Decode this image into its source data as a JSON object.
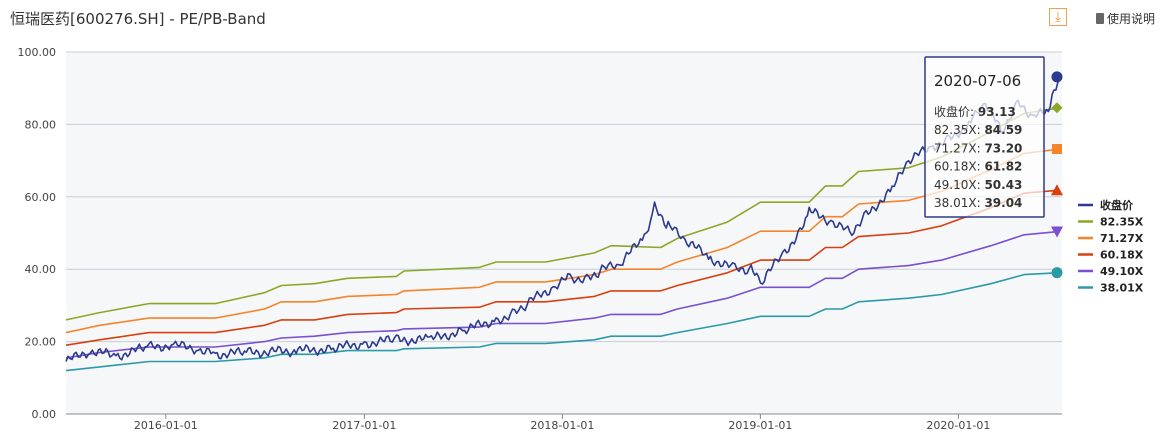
{
  "header": {
    "title": "恒瑞医药[600276.SH] - PE/PB-Band",
    "download_icon": "download-icon",
    "help_label": "使用说明",
    "help_icon": "book-icon"
  },
  "chart_data": {
    "type": "line",
    "title": "恒瑞医药[600276.SH] - PE/PB-Band",
    "ylim": [
      0,
      100
    ],
    "y_ticks": [
      "0.00",
      "20.00",
      "40.00",
      "60.00",
      "80.00",
      "100.00"
    ],
    "x_ticks": [
      "2016-01-01",
      "2017-01-01",
      "2018-01-01",
      "2019-01-01",
      "2020-01-01"
    ],
    "xlim": [
      "2015-07-01",
      "2020-07-10"
    ],
    "grid": true,
    "legend_placement": "right",
    "series": [
      {
        "name": "收盘价",
        "color": "#2b3a8f",
        "marker": "circle",
        "points": [
          [
            "2015-07-01",
            14.5
          ],
          [
            "2015-08-15",
            17.5
          ],
          [
            "2015-10-01",
            16
          ],
          [
            "2015-12-01",
            18.5
          ],
          [
            "2016-01-15",
            19
          ],
          [
            "2016-03-01",
            18
          ],
          [
            "2016-04-01",
            16.5
          ],
          [
            "2016-06-01",
            17
          ],
          [
            "2016-09-01",
            17.5
          ],
          [
            "2016-11-01",
            18
          ],
          [
            "2017-01-01",
            19.5
          ],
          [
            "2017-03-01",
            20.5
          ],
          [
            "2017-05-01",
            20.5
          ],
          [
            "2017-07-01",
            23
          ],
          [
            "2017-09-01",
            26
          ],
          [
            "2017-10-01",
            27.5
          ],
          [
            "2017-11-01",
            31
          ],
          [
            "2017-12-15",
            35
          ],
          [
            "2018-01-15",
            38
          ],
          [
            "2018-02-15",
            37
          ],
          [
            "2018-03-15",
            40
          ],
          [
            "2018-04-15",
            41
          ],
          [
            "2018-06-01",
            49
          ],
          [
            "2018-06-20",
            57
          ],
          [
            "2018-07-15",
            52
          ],
          [
            "2018-08-15",
            48
          ],
          [
            "2018-10-01",
            43
          ],
          [
            "2018-11-15",
            40
          ],
          [
            "2018-12-15",
            40
          ],
          [
            "2019-01-01",
            36
          ],
          [
            "2019-02-15",
            45
          ],
          [
            "2019-03-15",
            50
          ],
          [
            "2019-04-01",
            56
          ],
          [
            "2019-05-15",
            53
          ],
          [
            "2019-06-15",
            50
          ],
          [
            "2019-07-15",
            55
          ],
          [
            "2019-09-01",
            62
          ],
          [
            "2019-10-01",
            70
          ],
          [
            "2019-11-15",
            74
          ],
          [
            "2019-12-15",
            76
          ],
          [
            "2020-01-20",
            80
          ],
          [
            "2020-02-20",
            86
          ],
          [
            "2020-03-20",
            78
          ],
          [
            "2020-04-20",
            86
          ],
          [
            "2020-05-20",
            82
          ],
          [
            "2020-06-15",
            84
          ],
          [
            "2020-06-25",
            90
          ],
          [
            "2020-07-06",
            93.13
          ]
        ]
      },
      {
        "name": "82.35X",
        "color": "#8aa826",
        "marker": "diamond",
        "points": [
          [
            "2015-07-01",
            26
          ],
          [
            "2015-09-01",
            28
          ],
          [
            "2015-12-01",
            30.5
          ],
          [
            "2016-04-01",
            30.5
          ],
          [
            "2016-07-01",
            33.5
          ],
          [
            "2016-08-01",
            35.5
          ],
          [
            "2016-10-01",
            36
          ],
          [
            "2016-12-01",
            37.5
          ],
          [
            "2017-03-01",
            38
          ],
          [
            "2017-03-15",
            39.5
          ],
          [
            "2017-08-01",
            40.5
          ],
          [
            "2017-09-01",
            42
          ],
          [
            "2017-12-01",
            42
          ],
          [
            "2018-03-01",
            44.5
          ],
          [
            "2018-04-01",
            46.5
          ],
          [
            "2018-07-01",
            46
          ],
          [
            "2018-08-01",
            48.5
          ],
          [
            "2018-11-01",
            53
          ],
          [
            "2019-01-01",
            58.5
          ],
          [
            "2019-04-01",
            58.5
          ],
          [
            "2019-05-01",
            63
          ],
          [
            "2019-06-01",
            63
          ],
          [
            "2019-07-01",
            67
          ],
          [
            "2019-10-01",
            68
          ],
          [
            "2019-12-01",
            71
          ],
          [
            "2020-03-01",
            78
          ],
          [
            "2020-05-01",
            83
          ],
          [
            "2020-07-06",
            84.59
          ]
        ]
      },
      {
        "name": "71.27X",
        "color": "#f5842a",
        "marker": "square",
        "points": [
          [
            "2015-07-01",
            22.5
          ],
          [
            "2015-09-01",
            24.5
          ],
          [
            "2015-12-01",
            26.5
          ],
          [
            "2016-04-01",
            26.5
          ],
          [
            "2016-07-01",
            29
          ],
          [
            "2016-08-01",
            31
          ],
          [
            "2016-10-01",
            31
          ],
          [
            "2016-12-01",
            32.5
          ],
          [
            "2017-03-01",
            33
          ],
          [
            "2017-03-15",
            34
          ],
          [
            "2017-08-01",
            35
          ],
          [
            "2017-09-01",
            36.5
          ],
          [
            "2017-12-01",
            36.5
          ],
          [
            "2018-03-01",
            38.5
          ],
          [
            "2018-04-01",
            40
          ],
          [
            "2018-07-01",
            40
          ],
          [
            "2018-08-01",
            42
          ],
          [
            "2018-11-01",
            46
          ],
          [
            "2019-01-01",
            50.5
          ],
          [
            "2019-04-01",
            50.5
          ],
          [
            "2019-05-01",
            54.5
          ],
          [
            "2019-06-01",
            54.5
          ],
          [
            "2019-07-01",
            58
          ],
          [
            "2019-10-01",
            59
          ],
          [
            "2019-12-01",
            61.5
          ],
          [
            "2020-03-01",
            67.5
          ],
          [
            "2020-05-01",
            72
          ],
          [
            "2020-07-06",
            73.2
          ]
        ]
      },
      {
        "name": "60.18X",
        "color": "#d8400e",
        "marker": "triangle",
        "points": [
          [
            "2015-07-01",
            19
          ],
          [
            "2015-09-01",
            20.5
          ],
          [
            "2015-12-01",
            22.5
          ],
          [
            "2016-04-01",
            22.5
          ],
          [
            "2016-07-01",
            24.5
          ],
          [
            "2016-08-01",
            26
          ],
          [
            "2016-10-01",
            26
          ],
          [
            "2016-12-01",
            27.5
          ],
          [
            "2017-03-01",
            28
          ],
          [
            "2017-03-15",
            29
          ],
          [
            "2017-08-01",
            29.5
          ],
          [
            "2017-09-01",
            31
          ],
          [
            "2017-12-01",
            31
          ],
          [
            "2018-03-01",
            32.5
          ],
          [
            "2018-04-01",
            34
          ],
          [
            "2018-07-01",
            34
          ],
          [
            "2018-08-01",
            35.5
          ],
          [
            "2018-11-01",
            39
          ],
          [
            "2019-01-01",
            42.5
          ],
          [
            "2019-04-01",
            42.5
          ],
          [
            "2019-05-01",
            46
          ],
          [
            "2019-06-01",
            46
          ],
          [
            "2019-07-01",
            49
          ],
          [
            "2019-10-01",
            50
          ],
          [
            "2019-12-01",
            52
          ],
          [
            "2020-03-01",
            57
          ],
          [
            "2020-05-01",
            61
          ],
          [
            "2020-07-06",
            61.82
          ]
        ]
      },
      {
        "name": "49.10X",
        "color": "#7a4fd0",
        "marker": "triangle-down",
        "points": [
          [
            "2015-07-01",
            15.5
          ],
          [
            "2015-09-01",
            17
          ],
          [
            "2015-12-01",
            18.5
          ],
          [
            "2016-04-01",
            18.5
          ],
          [
            "2016-07-01",
            20
          ],
          [
            "2016-08-01",
            21
          ],
          [
            "2016-10-01",
            21.5
          ],
          [
            "2016-12-01",
            22.5
          ],
          [
            "2017-03-01",
            23
          ],
          [
            "2017-03-15",
            23.5
          ],
          [
            "2017-08-01",
            24
          ],
          [
            "2017-09-01",
            25
          ],
          [
            "2017-12-01",
            25
          ],
          [
            "2018-03-01",
            26.5
          ],
          [
            "2018-04-01",
            27.5
          ],
          [
            "2018-07-01",
            27.5
          ],
          [
            "2018-08-01",
            29
          ],
          [
            "2018-11-01",
            32
          ],
          [
            "2019-01-01",
            35
          ],
          [
            "2019-04-01",
            35
          ],
          [
            "2019-05-01",
            37.5
          ],
          [
            "2019-06-01",
            37.5
          ],
          [
            "2019-07-01",
            40
          ],
          [
            "2019-10-01",
            41
          ],
          [
            "2019-12-01",
            42.5
          ],
          [
            "2020-03-01",
            46.5
          ],
          [
            "2020-05-01",
            49.5
          ],
          [
            "2020-07-06",
            50.43
          ]
        ]
      },
      {
        "name": "38.01X",
        "color": "#2a9aa8",
        "marker": "circle",
        "points": [
          [
            "2015-07-01",
            12
          ],
          [
            "2015-09-01",
            13
          ],
          [
            "2015-12-01",
            14.5
          ],
          [
            "2016-04-01",
            14.5
          ],
          [
            "2016-07-01",
            15.5
          ],
          [
            "2016-08-01",
            16.5
          ],
          [
            "2016-10-01",
            16.5
          ],
          [
            "2016-12-01",
            17.5
          ],
          [
            "2017-03-01",
            17.5
          ],
          [
            "2017-03-15",
            18
          ],
          [
            "2017-08-01",
            18.5
          ],
          [
            "2017-09-01",
            19.5
          ],
          [
            "2017-12-01",
            19.5
          ],
          [
            "2018-03-01",
            20.5
          ],
          [
            "2018-04-01",
            21.5
          ],
          [
            "2018-07-01",
            21.5
          ],
          [
            "2018-08-01",
            22.5
          ],
          [
            "2018-11-01",
            25
          ],
          [
            "2019-01-01",
            27
          ],
          [
            "2019-04-01",
            27
          ],
          [
            "2019-05-01",
            29
          ],
          [
            "2019-06-01",
            29
          ],
          [
            "2019-07-01",
            31
          ],
          [
            "2019-10-01",
            32
          ],
          [
            "2019-12-01",
            33
          ],
          [
            "2020-03-01",
            36
          ],
          [
            "2020-05-01",
            38.5
          ],
          [
            "2020-07-06",
            39.04
          ]
        ]
      }
    ],
    "tooltip": {
      "date": "2020-07-06",
      "rows": [
        {
          "label": "收盘价:",
          "value": "93.13"
        },
        {
          "label": "82.35X:",
          "value": "84.59"
        },
        {
          "label": "71.27X:",
          "value": "73.20"
        },
        {
          "label": "60.18X:",
          "value": "61.82"
        },
        {
          "label": "49.10X:",
          "value": "50.43"
        },
        {
          "label": "38.01X:",
          "value": "39.04"
        }
      ]
    }
  }
}
